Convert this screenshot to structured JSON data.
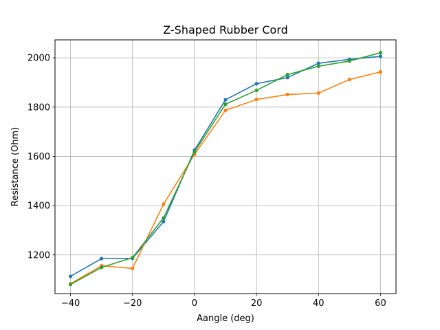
{
  "chart_data": {
    "type": "line",
    "title": "Z-Shaped Rubber Cord",
    "xlabel": "Aangle (deg)",
    "ylabel": "Resistance (Ohm)",
    "xlim": [
      -45,
      65
    ],
    "ylim": [
      1043,
      2073
    ],
    "xticks": [
      -40,
      -20,
      0,
      20,
      40,
      60
    ],
    "yticks": [
      1200,
      1400,
      1600,
      1800,
      2000
    ],
    "xtick_labels": [
      "−40",
      "−20",
      "0",
      "20",
      "40",
      "60"
    ],
    "ytick_labels": [
      "1200",
      "1400",
      "1600",
      "1800",
      "2000"
    ],
    "grid": true,
    "legend": "none",
    "x": [
      -40,
      -30,
      -20,
      -10,
      0,
      10,
      20,
      30,
      40,
      50,
      60
    ],
    "series": [
      {
        "color": "#1f77b4",
        "values": [
          1113,
          1185,
          1186,
          1335,
          1625,
          1830,
          1895,
          1920,
          1978,
          1994,
          2006
        ]
      },
      {
        "color": "#ff7f0e",
        "values": [
          1083,
          1156,
          1145,
          1406,
          1608,
          1787,
          1831,
          1851,
          1857,
          1912,
          1943
        ]
      },
      {
        "color": "#2ca02c",
        "values": [
          1080,
          1149,
          1189,
          1350,
          1618,
          1812,
          1868,
          1932,
          1966,
          1987,
          2021
        ]
      }
    ]
  }
}
